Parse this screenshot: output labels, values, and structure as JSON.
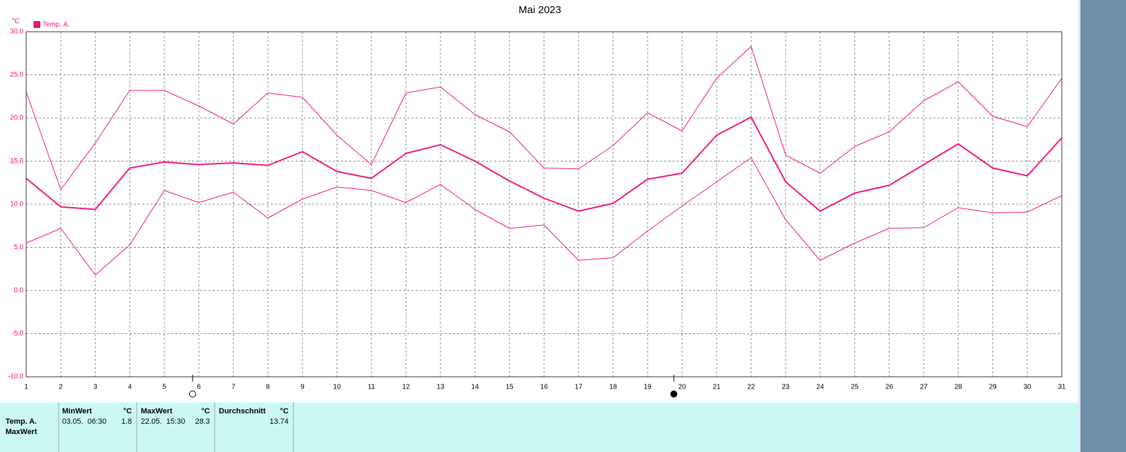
{
  "chart_data": {
    "type": "line",
    "title": "Mai 2023",
    "y_unit": "°C",
    "x": [
      1,
      2,
      3,
      4,
      5,
      6,
      7,
      8,
      9,
      10,
      11,
      12,
      13,
      14,
      15,
      16,
      17,
      18,
      19,
      20,
      21,
      22,
      23,
      24,
      25,
      26,
      27,
      28,
      29,
      30,
      31
    ],
    "xlim": [
      1,
      31
    ],
    "xticks": [
      1,
      2,
      3,
      4,
      5,
      6,
      7,
      8,
      9,
      10,
      11,
      12,
      13,
      14,
      15,
      16,
      17,
      18,
      19,
      20,
      21,
      22,
      23,
      24,
      25,
      26,
      27,
      28,
      29,
      30,
      31
    ],
    "ylim": [
      -10,
      30
    ],
    "yticks": [
      {
        "value": -10,
        "label": "-10.0"
      },
      {
        "value": -5,
        "label": "-5.0"
      },
      {
        "value": 0,
        "label": "0.0"
      },
      {
        "value": 5,
        "label": "5.0"
      },
      {
        "value": 10,
        "label": "10.0"
      },
      {
        "value": 15,
        "label": "15.0"
      },
      {
        "value": 20,
        "label": "20.0"
      },
      {
        "value": 25,
        "label": "25.0"
      },
      {
        "value": 30,
        "label": "30.0"
      }
    ],
    "grid": true,
    "legend": "upper left",
    "series": [
      {
        "color": "#f0147a",
        "linewidth": 1,
        "values": [
          23.0,
          11.7,
          17.1,
          23.2,
          23.2,
          21.4,
          19.3,
          22.9,
          22.4,
          18.0,
          14.6,
          22.9,
          23.6,
          20.4,
          18.4,
          14.2,
          14.1,
          16.8,
          20.6,
          18.5,
          24.6,
          28.3,
          15.7,
          13.6,
          16.7,
          18.4,
          22.0,
          24.2,
          20.2,
          19.0,
          24.6
        ]
      },
      {
        "name": "Temp. A.",
        "color": "#f0147a",
        "linewidth": 2,
        "values": [
          13.0,
          9.7,
          9.4,
          14.2,
          14.9,
          14.6,
          14.8,
          14.5,
          16.1,
          13.8,
          13.0,
          15.9,
          16.9,
          15.0,
          12.7,
          10.7,
          9.2,
          10.1,
          12.9,
          13.6,
          18.0,
          20.1,
          12.6,
          9.2,
          11.3,
          12.2,
          14.6,
          17.0,
          14.2,
          13.3,
          17.7
        ]
      },
      {
        "color": "#f0147a",
        "linewidth": 1,
        "values": [
          5.5,
          7.2,
          1.8,
          5.3,
          11.6,
          10.2,
          11.4,
          8.4,
          10.6,
          12.0,
          11.6,
          10.2,
          12.3,
          9.4,
          7.2,
          7.6,
          3.5,
          3.8,
          6.9,
          9.8,
          12.6,
          15.4,
          8.2,
          3.5,
          5.5,
          7.2,
          7.3,
          9.6,
          9.0,
          9.1,
          11.0
        ]
      }
    ]
  },
  "table": {
    "headers": [
      "MinWert",
      "°C",
      "MaxWert",
      "°C",
      "Durchschnitt",
      "°C"
    ],
    "rows": [
      [
        "Temp. A.",
        "03.05.  06:30",
        "1.8",
        "22.05.  15:30",
        "28.3",
        "13.74"
      ],
      [
        "MaxWert"
      ]
    ]
  }
}
